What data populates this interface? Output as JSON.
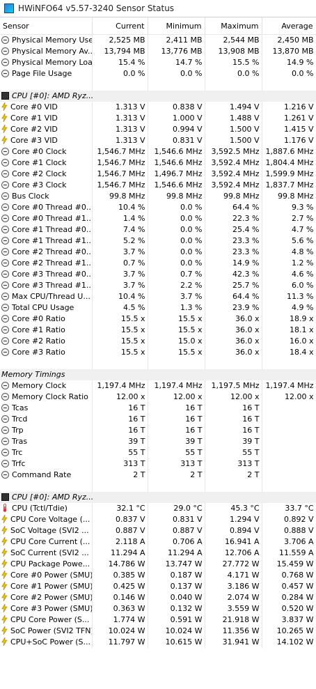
{
  "window": {
    "title": "HWiNFO64 v5.57-3240 Sensor Status"
  },
  "columns": [
    "Sensor",
    "Current",
    "Minimum",
    "Maximum",
    "Average"
  ],
  "rows": [
    {
      "type": "sensor",
      "icon": "gauge",
      "name": "Physical Memory Used",
      "cur": "2,525 MB",
      "min": "2,411 MB",
      "max": "2,544 MB",
      "avg": "2,450 MB"
    },
    {
      "type": "sensor",
      "icon": "gauge",
      "name": "Physical Memory Av...",
      "cur": "13,794 MB",
      "min": "13,776 MB",
      "max": "13,908 MB",
      "avg": "13,870 MB"
    },
    {
      "type": "sensor",
      "icon": "gauge",
      "name": "Physical Memory Load",
      "cur": "15.4 %",
      "min": "14.7 %",
      "max": "15.5 %",
      "avg": "14.9 %"
    },
    {
      "type": "sensor",
      "icon": "gauge",
      "name": "Page File Usage",
      "cur": "0.0 %",
      "min": "0.0 %",
      "max": "0.0 %",
      "avg": "0.0 %"
    },
    {
      "type": "spacer"
    },
    {
      "type": "group",
      "icon": "chip",
      "name": "CPU [#0]: AMD Ryz..."
    },
    {
      "type": "sensor",
      "icon": "volt",
      "name": "Core #0 VID",
      "cur": "1.313 V",
      "min": "0.838 V",
      "max": "1.494 V",
      "avg": "1.216 V"
    },
    {
      "type": "sensor",
      "icon": "volt",
      "name": "Core #1 VID",
      "cur": "1.313 V",
      "min": "1.000 V",
      "max": "1.488 V",
      "avg": "1.261 V"
    },
    {
      "type": "sensor",
      "icon": "volt",
      "name": "Core #2 VID",
      "cur": "1.313 V",
      "min": "0.994 V",
      "max": "1.500 V",
      "avg": "1.415 V"
    },
    {
      "type": "sensor",
      "icon": "volt",
      "name": "Core #3 VID",
      "cur": "1.313 V",
      "min": "0.831 V",
      "max": "1.500 V",
      "avg": "1.176 V"
    },
    {
      "type": "sensor",
      "icon": "gauge",
      "name": "Core #0 Clock",
      "cur": "1,546.7 MHz",
      "min": "1,546.6 MHz",
      "max": "3,592.5 MHz",
      "avg": "1,887.6 MHz"
    },
    {
      "type": "sensor",
      "icon": "gauge",
      "name": "Core #1 Clock",
      "cur": "1,546.7 MHz",
      "min": "1,546.6 MHz",
      "max": "3,592.4 MHz",
      "avg": "1,804.4 MHz"
    },
    {
      "type": "sensor",
      "icon": "gauge",
      "name": "Core #2 Clock",
      "cur": "1,546.7 MHz",
      "min": "1,496.7 MHz",
      "max": "3,592.4 MHz",
      "avg": "1,599.9 MHz"
    },
    {
      "type": "sensor",
      "icon": "gauge",
      "name": "Core #3 Clock",
      "cur": "1,546.7 MHz",
      "min": "1,546.6 MHz",
      "max": "3,592.4 MHz",
      "avg": "1,837.7 MHz"
    },
    {
      "type": "sensor",
      "icon": "gauge",
      "name": "Bus Clock",
      "cur": "99.8 MHz",
      "min": "99.8 MHz",
      "max": "99.8 MHz",
      "avg": "99.8 MHz"
    },
    {
      "type": "sensor",
      "icon": "gauge",
      "name": "Core #0 Thread #0...",
      "cur": "10.4 %",
      "min": "0.0 %",
      "max": "64.4 %",
      "avg": "9.3 %"
    },
    {
      "type": "sensor",
      "icon": "gauge",
      "name": "Core #0 Thread #1...",
      "cur": "1.4 %",
      "min": "0.0 %",
      "max": "22.3 %",
      "avg": "2.7 %"
    },
    {
      "type": "sensor",
      "icon": "gauge",
      "name": "Core #1 Thread #0...",
      "cur": "7.4 %",
      "min": "0.0 %",
      "max": "25.4 %",
      "avg": "4.7 %"
    },
    {
      "type": "sensor",
      "icon": "gauge",
      "name": "Core #1 Thread #1...",
      "cur": "5.2 %",
      "min": "0.0 %",
      "max": "23.3 %",
      "avg": "5.6 %"
    },
    {
      "type": "sensor",
      "icon": "gauge",
      "name": "Core #2 Thread #0...",
      "cur": "3.7 %",
      "min": "0.0 %",
      "max": "23.3 %",
      "avg": "4.8 %"
    },
    {
      "type": "sensor",
      "icon": "gauge",
      "name": "Core #2 Thread #1...",
      "cur": "0.7 %",
      "min": "0.0 %",
      "max": "14.9 %",
      "avg": "1.2 %"
    },
    {
      "type": "sensor",
      "icon": "gauge",
      "name": "Core #3 Thread #0...",
      "cur": "3.7 %",
      "min": "0.7 %",
      "max": "42.3 %",
      "avg": "4.6 %"
    },
    {
      "type": "sensor",
      "icon": "gauge",
      "name": "Core #3 Thread #1...",
      "cur": "3.7 %",
      "min": "2.2 %",
      "max": "25.7 %",
      "avg": "6.0 %"
    },
    {
      "type": "sensor",
      "icon": "gauge",
      "name": "Max CPU/Thread U...",
      "cur": "10.4 %",
      "min": "3.7 %",
      "max": "64.4 %",
      "avg": "11.3 %"
    },
    {
      "type": "sensor",
      "icon": "gauge",
      "name": "Total CPU Usage",
      "cur": "4.5 %",
      "min": "1.3 %",
      "max": "23.9 %",
      "avg": "4.9 %"
    },
    {
      "type": "sensor",
      "icon": "gauge",
      "name": "Core #0 Ratio",
      "cur": "15.5 x",
      "min": "15.5 x",
      "max": "36.0 x",
      "avg": "18.9 x"
    },
    {
      "type": "sensor",
      "icon": "gauge",
      "name": "Core #1 Ratio",
      "cur": "15.5 x",
      "min": "15.5 x",
      "max": "36.0 x",
      "avg": "18.1 x"
    },
    {
      "type": "sensor",
      "icon": "gauge",
      "name": "Core #2 Ratio",
      "cur": "15.5 x",
      "min": "15.0 x",
      "max": "36.0 x",
      "avg": "16.0 x"
    },
    {
      "type": "sensor",
      "icon": "gauge",
      "name": "Core #3 Ratio",
      "cur": "15.5 x",
      "min": "15.5 x",
      "max": "36.0 x",
      "avg": "18.4 x"
    },
    {
      "type": "spacer"
    },
    {
      "type": "group",
      "icon": "none",
      "name": "Memory Timings"
    },
    {
      "type": "sensor",
      "icon": "gauge",
      "name": "Memory Clock",
      "cur": "1,197.4 MHz",
      "min": "1,197.4 MHz",
      "max": "1,197.5 MHz",
      "avg": "1,197.4 MHz"
    },
    {
      "type": "sensor",
      "icon": "gauge",
      "name": "Memory Clock Ratio",
      "cur": "12.00 x",
      "min": "12.00 x",
      "max": "12.00 x",
      "avg": "12.00 x"
    },
    {
      "type": "sensor",
      "icon": "gauge",
      "name": "Tcas",
      "cur": "16 T",
      "min": "16 T",
      "max": "16 T",
      "avg": ""
    },
    {
      "type": "sensor",
      "icon": "gauge",
      "name": "Trcd",
      "cur": "16 T",
      "min": "16 T",
      "max": "16 T",
      "avg": ""
    },
    {
      "type": "sensor",
      "icon": "gauge",
      "name": "Trp",
      "cur": "16 T",
      "min": "16 T",
      "max": "16 T",
      "avg": ""
    },
    {
      "type": "sensor",
      "icon": "gauge",
      "name": "Tras",
      "cur": "39 T",
      "min": "39 T",
      "max": "39 T",
      "avg": ""
    },
    {
      "type": "sensor",
      "icon": "gauge",
      "name": "Trc",
      "cur": "55 T",
      "min": "55 T",
      "max": "55 T",
      "avg": ""
    },
    {
      "type": "sensor",
      "icon": "gauge",
      "name": "Trfc",
      "cur": "313 T",
      "min": "313 T",
      "max": "313 T",
      "avg": ""
    },
    {
      "type": "sensor",
      "icon": "gauge",
      "name": "Command Rate",
      "cur": "2 T",
      "min": "2 T",
      "max": "2 T",
      "avg": ""
    },
    {
      "type": "spacer"
    },
    {
      "type": "group",
      "icon": "chip",
      "name": "CPU [#0]: AMD Ryz..."
    },
    {
      "type": "sensor",
      "icon": "temp",
      "name": "CPU (Tctl/Tdie)",
      "cur": "32.1 °C",
      "min": "29.0 °C",
      "max": "45.3 °C",
      "avg": "33.7 °C"
    },
    {
      "type": "sensor",
      "icon": "volt",
      "name": "CPU Core Voltage (...",
      "cur": "0.837 V",
      "min": "0.831 V",
      "max": "1.294 V",
      "avg": "0.892 V"
    },
    {
      "type": "sensor",
      "icon": "volt",
      "name": "SoC Voltage (SVI2 ...",
      "cur": "0.887 V",
      "min": "0.887 V",
      "max": "0.894 V",
      "avg": "0.888 V"
    },
    {
      "type": "sensor",
      "icon": "volt",
      "name": "CPU Core Current (...",
      "cur": "2.118 A",
      "min": "0.706 A",
      "max": "16.941 A",
      "avg": "3.706 A"
    },
    {
      "type": "sensor",
      "icon": "volt",
      "name": "SoC Current (SVI2 ...",
      "cur": "11.294 A",
      "min": "11.294 A",
      "max": "12.706 A",
      "avg": "11.559 A"
    },
    {
      "type": "sensor",
      "icon": "volt",
      "name": "CPU Package Powe...",
      "cur": "14.786 W",
      "min": "13.747 W",
      "max": "27.772 W",
      "avg": "15.459 W"
    },
    {
      "type": "sensor",
      "icon": "volt",
      "name": "Core #0 Power (SMU)",
      "cur": "0.385 W",
      "min": "0.187 W",
      "max": "4.171 W",
      "avg": "0.768 W"
    },
    {
      "type": "sensor",
      "icon": "volt",
      "name": "Core #1 Power (SMU)",
      "cur": "0.425 W",
      "min": "0.137 W",
      "max": "3.186 W",
      "avg": "0.457 W"
    },
    {
      "type": "sensor",
      "icon": "volt",
      "name": "Core #2 Power (SMU)",
      "cur": "0.146 W",
      "min": "0.040 W",
      "max": "2.074 W",
      "avg": "0.284 W"
    },
    {
      "type": "sensor",
      "icon": "volt",
      "name": "Core #3 Power (SMU)",
      "cur": "0.363 W",
      "min": "0.132 W",
      "max": "3.559 W",
      "avg": "0.520 W"
    },
    {
      "type": "sensor",
      "icon": "volt",
      "name": "CPU Core Power (S...",
      "cur": "1.774 W",
      "min": "0.591 W",
      "max": "21.918 W",
      "avg": "3.837 W"
    },
    {
      "type": "sensor",
      "icon": "volt",
      "name": "SoC Power (SVI2 TFN)",
      "cur": "10.024 W",
      "min": "10.024 W",
      "max": "11.356 W",
      "avg": "10.265 W"
    },
    {
      "type": "sensor",
      "icon": "volt",
      "name": "CPU+SoC Power (S...",
      "cur": "11.797 W",
      "min": "10.615 W",
      "max": "31.941 W",
      "avg": "14.102 W"
    }
  ]
}
